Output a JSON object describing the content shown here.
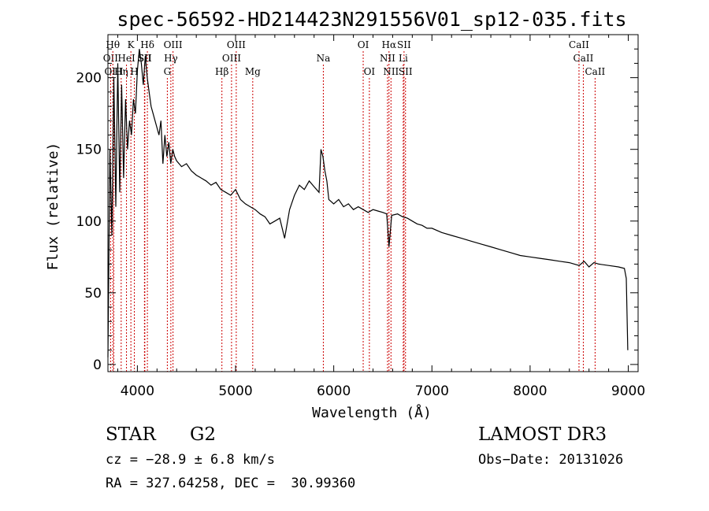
{
  "chart_data": {
    "type": "line",
    "title": "spec-56592-HD214423N291556V01_sp12-035.fits",
    "xlabel": "Wavelength (Å)",
    "ylabel": "Flux (relative)",
    "xlim": [
      3700,
      9100
    ],
    "ylim": [
      -5,
      230
    ],
    "xticks": [
      4000,
      5000,
      6000,
      7000,
      8000,
      9000
    ],
    "yticks": [
      0,
      50,
      100,
      150,
      200
    ],
    "grid": false,
    "line_color": "#000000",
    "marker_color": "#cc0000",
    "series": [
      {
        "x": [
          3700,
          3720,
          3740,
          3760,
          3780,
          3800,
          3820,
          3840,
          3860,
          3880,
          3900,
          3920,
          3940,
          3960,
          3980,
          4000,
          4020,
          4040,
          4060,
          4080,
          4100,
          4120,
          4140,
          4160,
          4180,
          4200,
          4220,
          4240,
          4260,
          4280,
          4300,
          4320,
          4340,
          4360,
          4380,
          4400,
          4450,
          4500,
          4550,
          4600,
          4650,
          4700,
          4750,
          4800,
          4850,
          4900,
          4950,
          5000,
          5050,
          5100,
          5150,
          5200,
          5250,
          5300,
          5350,
          5400,
          5450,
          5500,
          5550,
          5600,
          5650,
          5700,
          5750,
          5800,
          5850,
          5870,
          5890,
          5910,
          5930,
          5950,
          6000,
          6050,
          6100,
          6150,
          6200,
          6250,
          6300,
          6350,
          6400,
          6450,
          6500,
          6540,
          6563,
          6590,
          6650,
          6700,
          6750,
          6800,
          6850,
          6900,
          6950,
          7000,
          7100,
          7200,
          7300,
          7400,
          7500,
          7600,
          7700,
          7800,
          7900,
          8000,
          8100,
          8200,
          8300,
          8400,
          8500,
          8550,
          8600,
          8650,
          8700,
          8800,
          8900,
          8960,
          8980,
          8995
        ],
        "y": [
          5,
          150,
          90,
          200,
          110,
          210,
          120,
          195,
          130,
          185,
          150,
          170,
          160,
          185,
          175,
          205,
          220,
          210,
          195,
          215,
          200,
          190,
          180,
          175,
          170,
          165,
          160,
          170,
          140,
          160,
          145,
          155,
          140,
          150,
          145,
          142,
          138,
          140,
          135,
          132,
          130,
          128,
          125,
          127,
          122,
          120,
          118,
          122,
          115,
          112,
          110,
          108,
          105,
          103,
          98,
          100,
          102,
          88,
          108,
          118,
          125,
          122,
          128,
          124,
          120,
          150,
          145,
          135,
          128,
          115,
          112,
          115,
          110,
          112,
          108,
          110,
          108,
          106,
          108,
          107,
          106,
          105,
          82,
          104,
          105,
          103,
          102,
          100,
          98,
          97,
          95,
          95,
          92,
          90,
          88,
          86,
          84,
          82,
          80,
          78,
          76,
          75,
          74,
          73,
          72,
          71,
          69,
          72,
          68,
          71,
          70,
          69,
          68,
          67,
          60,
          10
        ]
      }
    ],
    "lines": [
      {
        "label": "OII",
        "x": 3727,
        "row": 2
      },
      {
        "label": "Hθ",
        "x": 3750,
        "row": 1
      },
      {
        "label": "OIII",
        "x": 3760,
        "row": 3
      },
      {
        "label": "Hη",
        "x": 3835,
        "row": 3
      },
      {
        "label": "HeI",
        "x": 3889,
        "row": 2
      },
      {
        "label": "K",
        "x": 3934,
        "row": 1
      },
      {
        "label": "H",
        "x": 3969,
        "row": 3
      },
      {
        "label": "SII",
        "x": 4072,
        "row": 2
      },
      {
        "label": "Hδ",
        "x": 4102,
        "row": 1
      },
      {
        "label": "SII",
        "x": 4076,
        "row": 2
      },
      {
        "label": "OIII",
        "x": 4363,
        "row": 1
      },
      {
        "label": "Hγ",
        "x": 4341,
        "row": 2
      },
      {
        "label": "G",
        "x": 4305,
        "row": 3
      },
      {
        "label": "Hβ",
        "x": 4861,
        "row": 3
      },
      {
        "label": "OIII",
        "x": 5007,
        "row": 1
      },
      {
        "label": "OIII",
        "x": 4959,
        "row": 2
      },
      {
        "label": "Mg",
        "x": 5175,
        "row": 3
      },
      {
        "label": "Na",
        "x": 5894,
        "row": 2
      },
      {
        "label": "OI",
        "x": 6300,
        "row": 1
      },
      {
        "label": "OI",
        "x": 6363,
        "row": 3
      },
      {
        "label": "Hα",
        "x": 6563,
        "row": 1
      },
      {
        "label": "NII",
        "x": 6548,
        "row": 2
      },
      {
        "label": "NII",
        "x": 6583,
        "row": 3
      },
      {
        "label": "SII",
        "x": 6716,
        "row": 1
      },
      {
        "label": "Li",
        "x": 6708,
        "row": 2
      },
      {
        "label": "SII",
        "x": 6731,
        "row": 3
      },
      {
        "label": "CaII",
        "x": 8498,
        "row": 1
      },
      {
        "label": "CaII",
        "x": 8542,
        "row": 2
      },
      {
        "label": "CaII",
        "x": 8662,
        "row": 3
      }
    ]
  },
  "info": {
    "class_label": "STAR",
    "subclass_label": "G2",
    "survey": "LAMOST DR3",
    "cz": "cz = −28.9 ± 6.8 km/s",
    "obs_date": "Obs−Date: 20131026",
    "coords": "RA = 327.64258, DEC =  30.99360"
  }
}
